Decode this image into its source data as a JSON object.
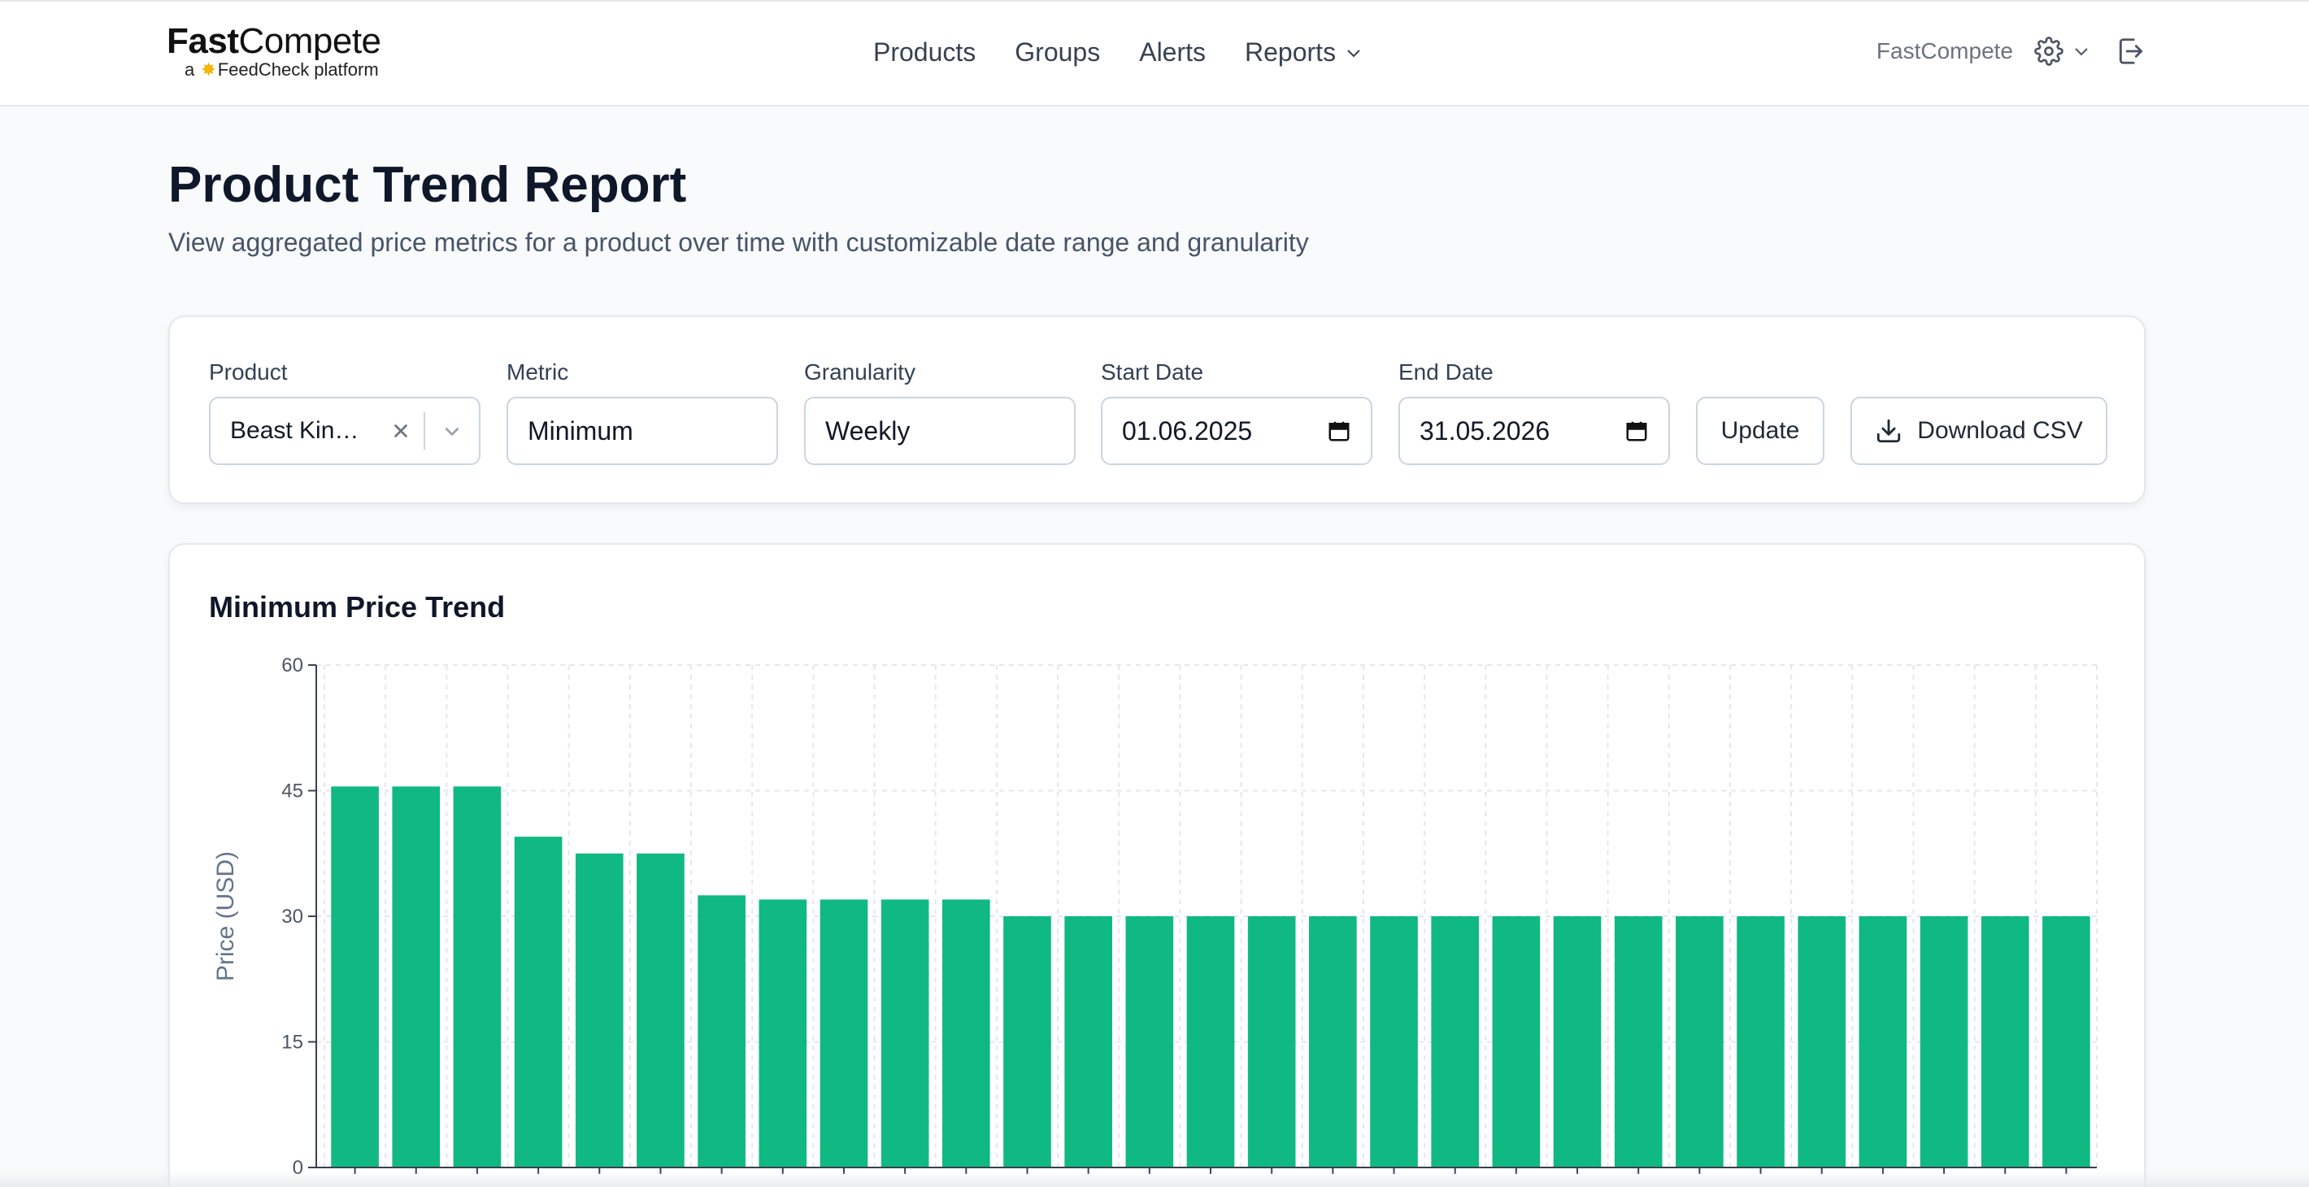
{
  "header": {
    "logo_main_bold": "Fast",
    "logo_main_rest": "Compete",
    "logo_sub_prefix": "a",
    "logo_sub_brand": "FeedCheck",
    "logo_sub_suffix": "platform",
    "nav": [
      {
        "label": "Products"
      },
      {
        "label": "Groups"
      },
      {
        "label": "Alerts"
      },
      {
        "label": "Reports"
      }
    ],
    "org_name": "FastCompete"
  },
  "page": {
    "title": "Product Trend Report",
    "subtitle": "View aggregated price metrics for a product over time with customizable date range and granularity"
  },
  "filters": {
    "product_label": "Product",
    "product_value": "Beast Kin…",
    "metric_label": "Metric",
    "metric_value": "Minimum",
    "granularity_label": "Granularity",
    "granularity_value": "Weekly",
    "start_label": "Start Date",
    "start_value": "01.06.2025",
    "end_label": "End Date",
    "end_value": "31.05.2026",
    "update_label": "Update",
    "download_label": "Download CSV"
  },
  "colors": {
    "bar": "#10b981",
    "grid": "#e5e7eb",
    "axis": "#374151"
  },
  "chart_data": {
    "type": "bar",
    "title": "Minimum Price Trend",
    "ylabel": "Price (USD)",
    "xlabel": "",
    "ylim": [
      0,
      60
    ],
    "yticks": [
      0,
      15,
      30,
      45,
      60
    ],
    "grid": true,
    "values": [
      45.5,
      45.5,
      45.5,
      39.5,
      37.5,
      37.5,
      32.5,
      32,
      32,
      32,
      32,
      30,
      30,
      30,
      30,
      30,
      30,
      30,
      30,
      30,
      30,
      30,
      30,
      30,
      30,
      30,
      30,
      30,
      30
    ]
  }
}
